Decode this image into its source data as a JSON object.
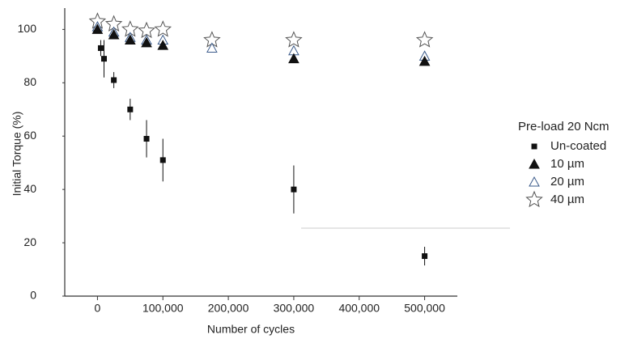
{
  "chart_data": {
    "type": "scatter",
    "xlabel": "Number of cycles",
    "ylabel": "Initial Torque (%)",
    "legend_title": "Pre-load 20 Ncm",
    "legend_position": "right",
    "xlim": [
      -50000,
      550000
    ],
    "ylim": [
      0,
      108
    ],
    "xticks": [
      0,
      {
        "value": 100000,
        "label": "100,000"
      },
      {
        "value": 200000,
        "label": "200,000"
      },
      {
        "value": 300000,
        "label": "300,000"
      },
      {
        "value": 400000,
        "label": "400,000"
      },
      {
        "value": 500000,
        "label": "500,000"
      }
    ],
    "yticks": [
      0,
      20,
      40,
      60,
      80,
      100
    ],
    "series": [
      {
        "name": "Un-coated",
        "marker": "square",
        "color": "#111111",
        "x": [
          5000,
          10000,
          25000,
          50000,
          75000,
          100000,
          300000,
          500000
        ],
        "values": [
          93,
          89,
          81,
          70,
          59,
          51,
          40,
          15
        ],
        "errors": [
          3,
          7,
          3,
          4,
          7,
          8,
          9,
          3.5
        ]
      },
      {
        "name": "10 µm",
        "marker": "triangle",
        "color": "#111111",
        "x": [
          0,
          25000,
          50000,
          75000,
          100000,
          300000,
          500000
        ],
        "values": [
          100,
          98,
          96,
          95,
          94,
          89,
          88
        ]
      },
      {
        "name": "20 µm",
        "marker": "triangle-open",
        "color": "#3a5a8a",
        "x": [
          0,
          25000,
          50000,
          75000,
          100000,
          175000,
          300000,
          500000
        ],
        "values": [
          101,
          99,
          97,
          96,
          96,
          93,
          92,
          90
        ]
      },
      {
        "name": "40 µm",
        "marker": "star-open",
        "color": "#555555",
        "x": [
          0,
          25000,
          50000,
          75000,
          100000,
          175000,
          300000,
          500000
        ],
        "values": [
          103,
          102,
          100,
          99.5,
          100,
          96,
          96,
          96
        ]
      }
    ]
  }
}
